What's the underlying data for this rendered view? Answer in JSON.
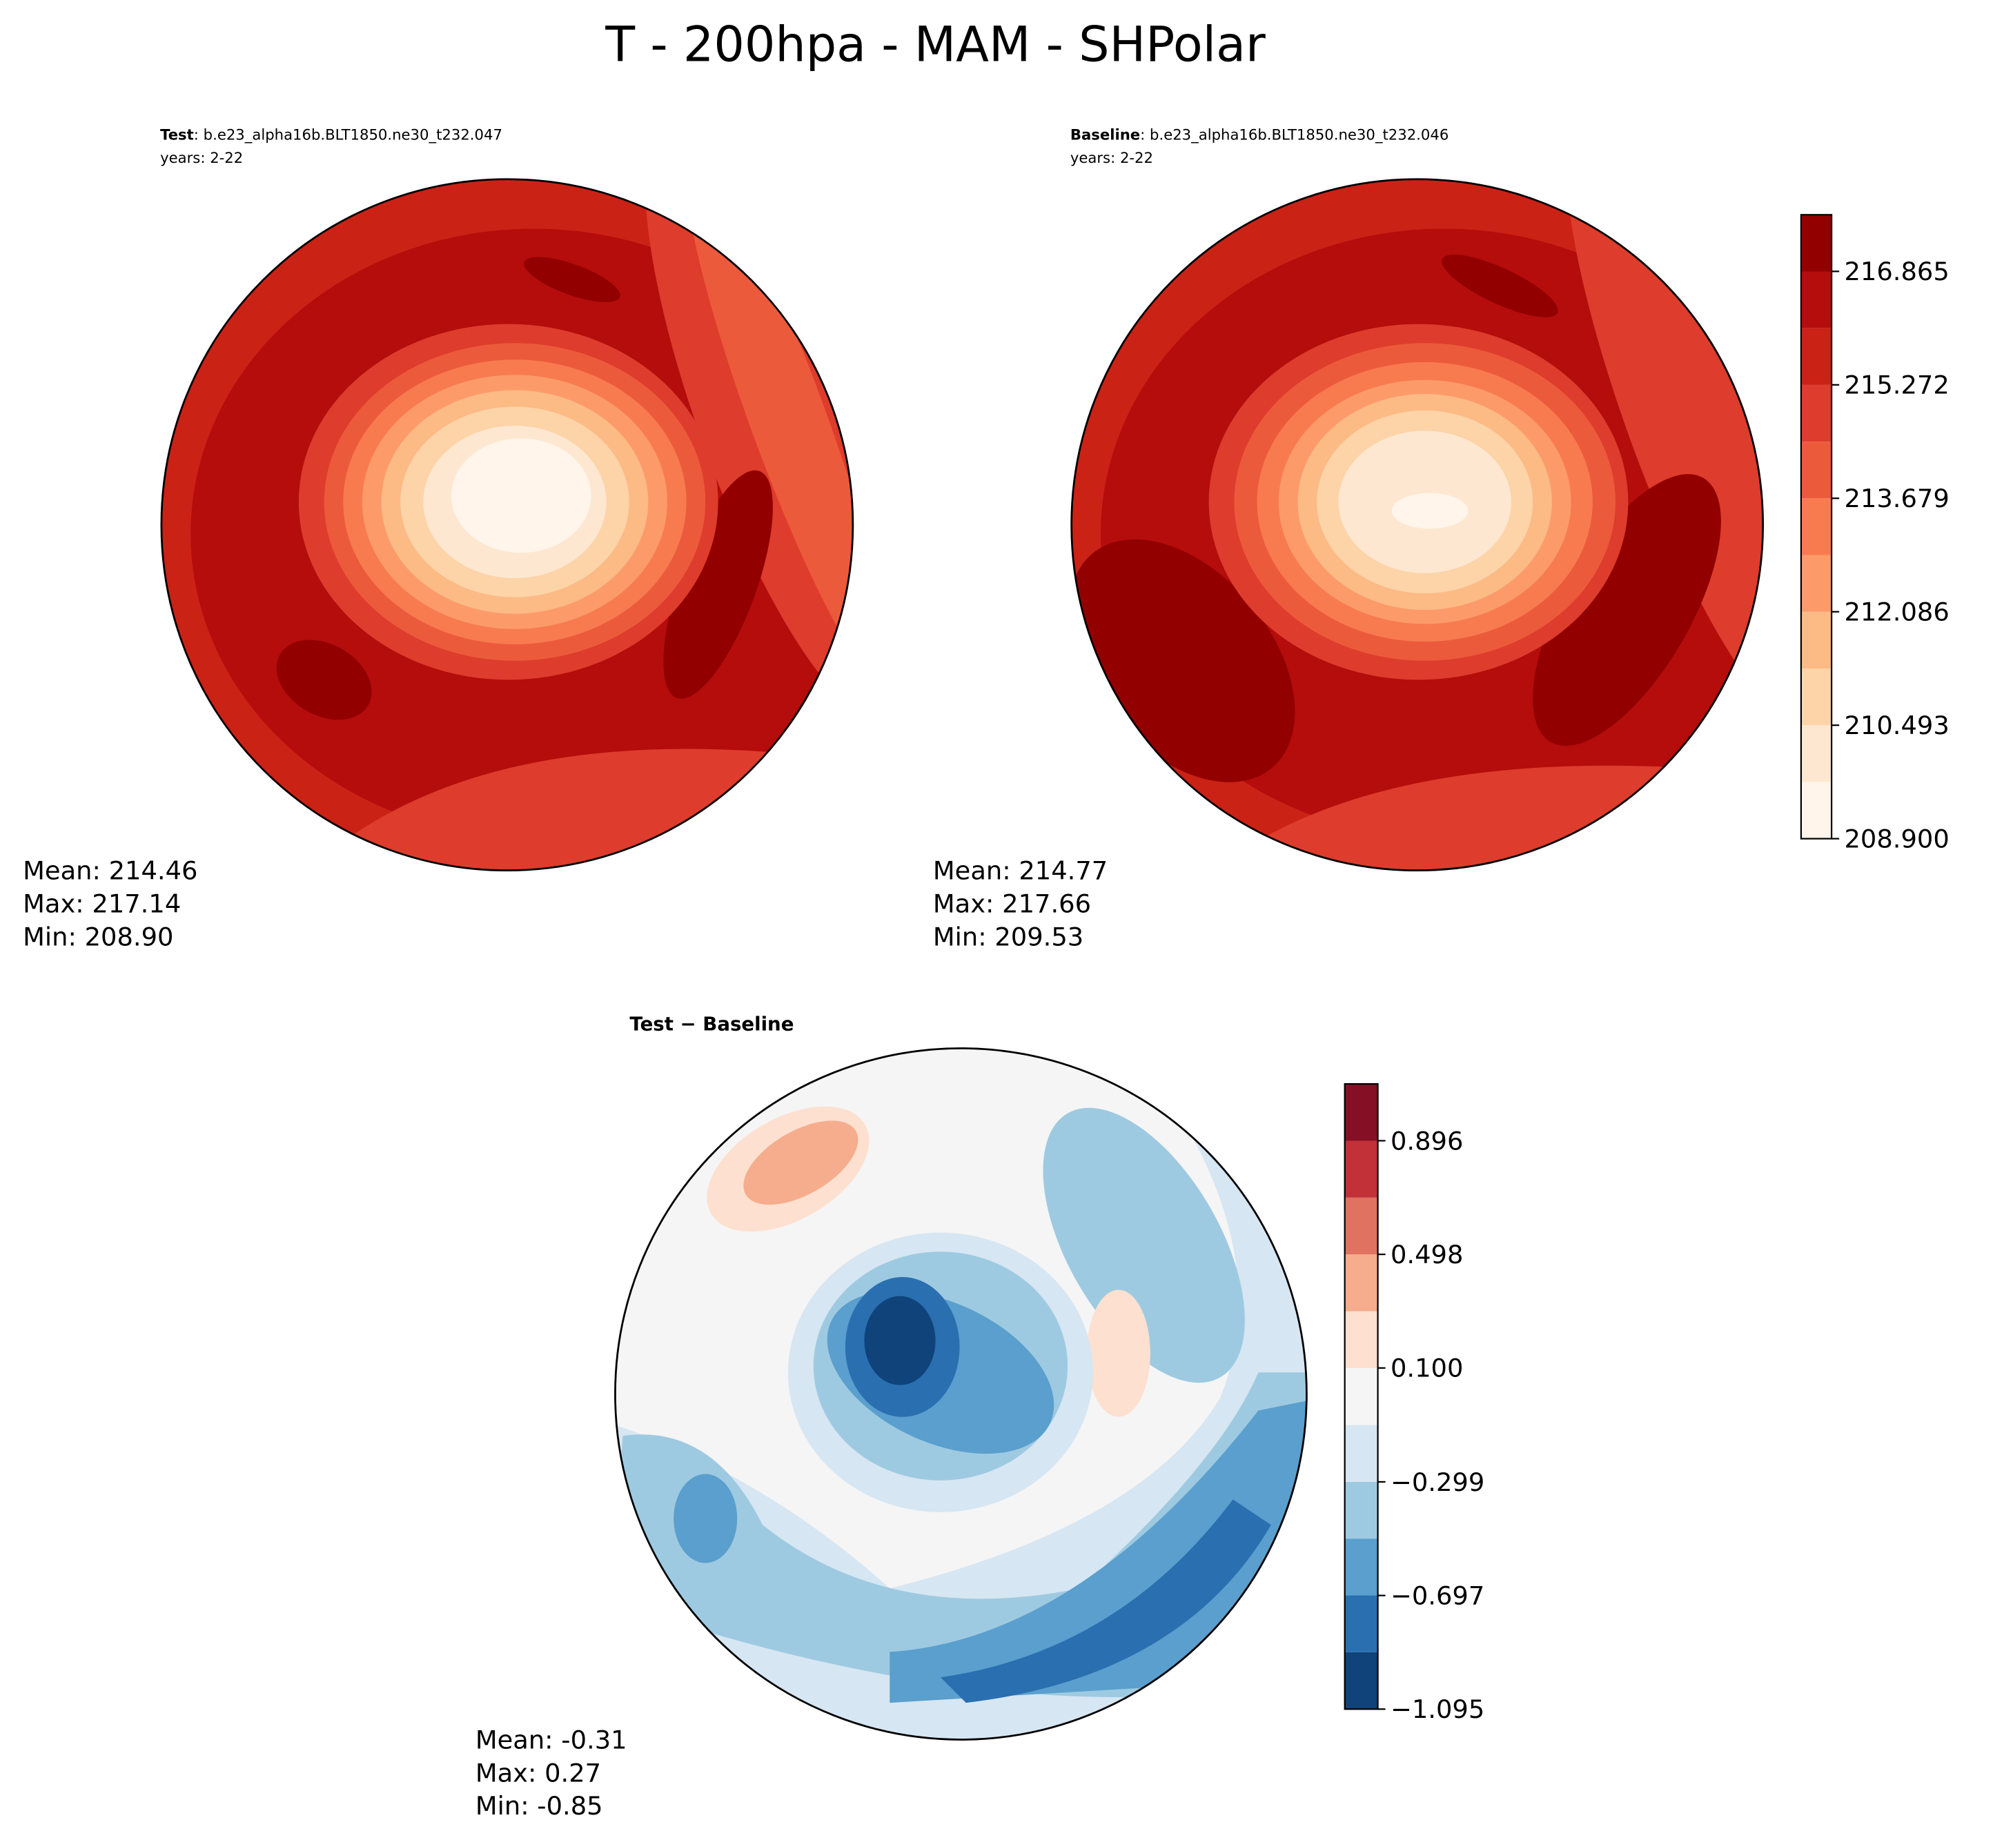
{
  "title": "T - 200hpa - MAM - SHPolar",
  "chart_data": [
    {
      "type": "contour",
      "label": "Test",
      "case": ": b.e23_alpha16b.BLT1850.ne30_t232.047",
      "years": "years: 2-22",
      "stats": [
        "Mean: 214.46",
        "Max: 217.14",
        "Min: 208.90"
      ]
    },
    {
      "type": "contour",
      "label": "Baseline",
      "case": ": b.e23_alpha16b.BLT1850.ne30_t232.046",
      "years": "years: 2-22",
      "stats": [
        "Mean: 214.77",
        "Max: 217.66",
        "Min: 209.53"
      ],
      "colorbar": {
        "ylim": [
          208.9,
          217.66
        ],
        "colors": [
          "#fff5eb",
          "#fee7d0",
          "#fdd3a8",
          "#fcba85",
          "#fc9b69",
          "#f87b50",
          "#ec5a3c",
          "#de3c2c",
          "#cb2216",
          "#b50c0c",
          "#920000"
        ],
        "yticks": [
          {
            "value": 208.9,
            "label": "208.900"
          },
          {
            "value": 210.493,
            "label": "210.493"
          },
          {
            "value": 212.086,
            "label": "212.086"
          },
          {
            "value": 213.679,
            "label": "213.679"
          },
          {
            "value": 215.272,
            "label": "215.272"
          },
          {
            "value": 216.865,
            "label": "216.865"
          }
        ]
      }
    },
    {
      "type": "contour",
      "label": "Test − Baseline",
      "stats": [
        "Mean: -0.31",
        "Max:  0.27",
        "Min: -0.85"
      ],
      "colorbar": {
        "ylim": [
          -1.095,
          1.095
        ],
        "colors": [
          "#0f437a",
          "#2a6fb0",
          "#5a9fcd",
          "#9ecae1",
          "#d6e6f2",
          "#f5f5f5",
          "#fde0d0",
          "#f5ad8d",
          "#df7260",
          "#c23038",
          "#850f24"
        ],
        "yticks": [
          {
            "value": -1.095,
            "label": "−1.095"
          },
          {
            "value": -0.697,
            "label": "−0.697"
          },
          {
            "value": -0.299,
            "label": "−0.299"
          },
          {
            "value": 0.1,
            "label": "0.100"
          },
          {
            "value": 0.498,
            "label": "0.498"
          },
          {
            "value": 0.896,
            "label": "0.896"
          }
        ]
      }
    }
  ]
}
